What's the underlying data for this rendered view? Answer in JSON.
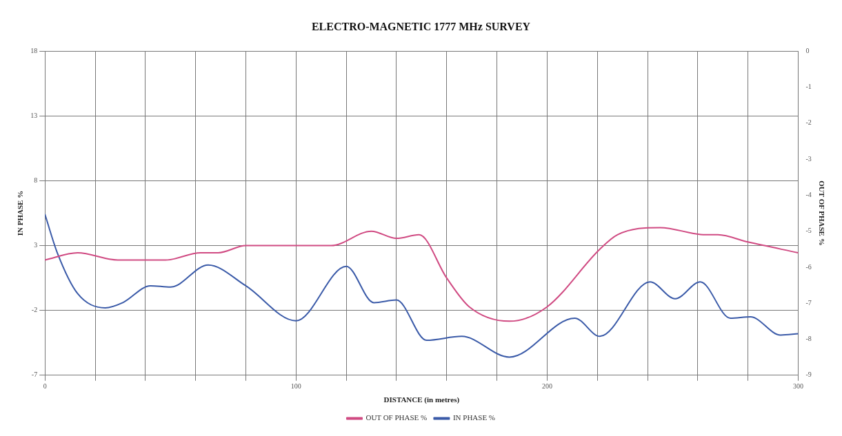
{
  "chart_data": {
    "type": "line",
    "title": "ELECTRO-MAGNETIC 1777 MHz SURVEY",
    "xlabel": "DISTANCE (in metres)",
    "ylabel": "IN PHASE %",
    "y2label": "OUT OF PHASE %",
    "xlim": [
      0,
      300
    ],
    "xticks": [
      0,
      {
        "value": 20,
        "label": null
      },
      {
        "value": 40,
        "label": null
      },
      {
        "value": 60,
        "label": null
      },
      {
        "value": 80,
        "label": null
      },
      100,
      {
        "value": 120,
        "label": null
      },
      {
        "value": 140,
        "label": null
      },
      {
        "value": 160,
        "label": null
      },
      {
        "value": 180,
        "label": null
      },
      200,
      {
        "value": 220,
        "label": null
      },
      {
        "value": 240,
        "label": null
      },
      {
        "value": 260,
        "label": null
      },
      {
        "value": 280,
        "label": null
      },
      300
    ],
    "ylim": [
      -7,
      18
    ],
    "yticks": [
      -7,
      -2,
      3,
      8,
      13,
      18
    ],
    "y2lim": [
      -9,
      0
    ],
    "y2ticks": [
      -9,
      -8,
      -7,
      -6,
      -5,
      -4,
      -3,
      -2,
      -1,
      0
    ],
    "grid": true,
    "legend": "bottom",
    "marker": "none",
    "line_style": "solid",
    "series": [
      {
        "name": "OUT OF PHASE %",
        "color": "#d04a82",
        "axis": "y2",
        "x": [
          0,
          13,
          29,
          48,
          62,
          69,
          80,
          114,
          130,
          140,
          149,
          160,
          169,
          185,
          200,
          221,
          228,
          245,
          263,
          268,
          280,
          300
        ],
        "values": [
          -5.8,
          -5.6,
          -5.8,
          -5.8,
          -5.6,
          -5.6,
          -5.4,
          -5.4,
          -5.0,
          -5.2,
          -5.1,
          -6.3,
          -7.1,
          -7.5,
          -7.1,
          -5.5,
          -5.1,
          -4.9,
          -5.1,
          -5.1,
          -5.3,
          -5.6
        ]
      },
      {
        "name": "IN PHASE %",
        "color": "#3a5aa8",
        "x": [
          0,
          5,
          13,
          24,
          31,
          42,
          50,
          65,
          80,
          100,
          120,
          131,
          140,
          152,
          166,
          185,
          211,
          221,
          241,
          251,
          261,
          273,
          281,
          293,
          300
        ],
        "values": [
          5.4,
          2.4,
          -0.7,
          -1.8,
          -1.4,
          -0.1,
          -0.2,
          1.5,
          -0.1,
          -2.8,
          1.4,
          -1.4,
          -1.2,
          -4.3,
          -4.0,
          -5.6,
          -2.6,
          -4.0,
          0.2,
          -1.1,
          0.2,
          -2.6,
          -2.5,
          -3.9,
          -3.8
        ]
      }
    ]
  }
}
